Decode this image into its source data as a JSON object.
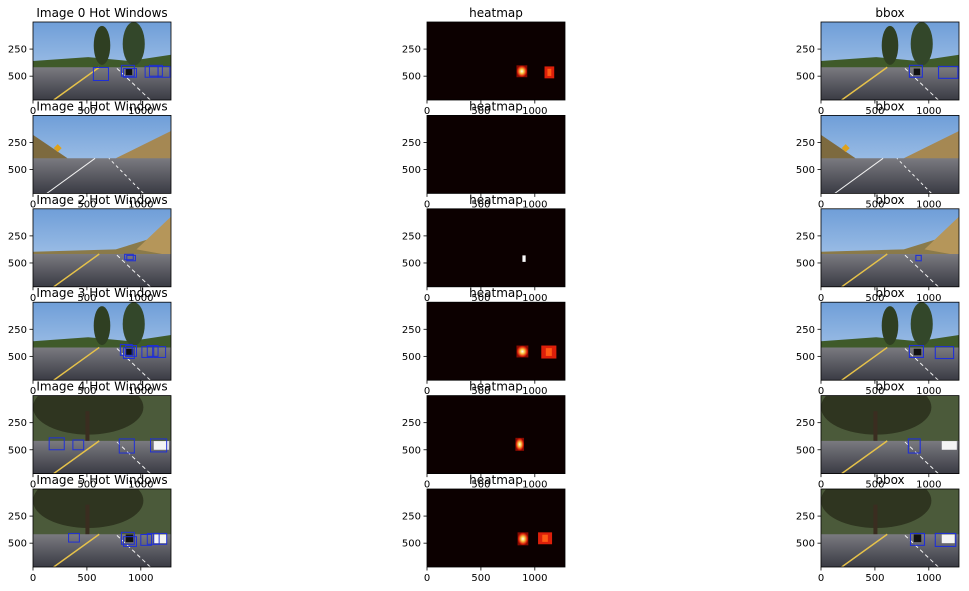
{
  "figure": {
    "background": "#ffffff",
    "rows": 6,
    "columns": 3
  },
  "chart_data": {
    "type": "image-grid",
    "xlim": [
      0,
      1280
    ],
    "ylim": [
      720,
      0
    ],
    "xticks": [
      "0",
      "500",
      "1000"
    ],
    "yticks": [
      "250",
      "500"
    ],
    "xtick_values": [
      0,
      500,
      1000
    ],
    "ytick_values": [
      250,
      500
    ],
    "colors": {
      "box": "#1f2fd6",
      "heat_background": "#0c0000",
      "heat_mid": "#e0200a",
      "heat_hot": "#ffd24a",
      "heat_max": "#ffffff"
    },
    "rows": [
      {
        "titles": [
          "Image 0 Hot Windows",
          "heatmap",
          "bbox"
        ],
        "scene": "shaded-highway",
        "hot_windows": [
          [
            560,
            420,
            700,
            540
          ],
          [
            820,
            400,
            940,
            500
          ],
          [
            840,
            430,
            960,
            510
          ],
          [
            1040,
            410,
            1160,
            510
          ],
          [
            1080,
            400,
            1200,
            500
          ],
          [
            1160,
            410,
            1270,
            510
          ]
        ],
        "heat_blobs": [
          {
            "x0": 830,
            "y0": 400,
            "x1": 930,
            "y1": 510,
            "level": 0.85
          },
          {
            "x0": 1090,
            "y0": 410,
            "x1": 1180,
            "y1": 520,
            "level": 0.5
          }
        ],
        "bboxes": [
          [
            820,
            400,
            940,
            510
          ],
          [
            1090,
            410,
            1270,
            520
          ]
        ],
        "car_patches": [
          [
            860,
            430,
            920,
            490
          ]
        ]
      },
      {
        "titles": [
          "Image 1 Hot Windows",
          "heatmap",
          "bbox"
        ],
        "scene": "desert-road",
        "hot_windows": [],
        "heat_blobs": [],
        "bboxes": [],
        "car_patches": []
      },
      {
        "titles": [
          "Image 2 Hot Windows",
          "heatmap",
          "bbox"
        ],
        "scene": "open-road",
        "hot_windows": [
          [
            850,
            420,
            930,
            470
          ],
          [
            870,
            430,
            950,
            480
          ]
        ],
        "heat_blobs": [
          {
            "x0": 885,
            "y0": 430,
            "x1": 915,
            "y1": 490,
            "level": 1.0
          }
        ],
        "bboxes": [
          [
            880,
            430,
            930,
            480
          ]
        ],
        "car_patches": []
      },
      {
        "titles": [
          "Image 3 Hot Windows",
          "heatmap",
          "bbox"
        ],
        "scene": "shaded-highway",
        "hot_windows": [
          [
            810,
            390,
            920,
            490
          ],
          [
            840,
            420,
            940,
            520
          ],
          [
            860,
            400,
            960,
            500
          ],
          [
            1010,
            410,
            1110,
            510
          ],
          [
            1060,
            400,
            1160,
            500
          ],
          [
            1120,
            410,
            1230,
            510
          ]
        ],
        "heat_blobs": [
          {
            "x0": 830,
            "y0": 400,
            "x1": 940,
            "y1": 510,
            "level": 0.85
          },
          {
            "x0": 1060,
            "y0": 400,
            "x1": 1200,
            "y1": 520,
            "level": 0.6
          }
        ],
        "bboxes": [
          [
            820,
            400,
            950,
            510
          ],
          [
            1060,
            410,
            1230,
            520
          ]
        ],
        "car_patches": [
          [
            860,
            430,
            930,
            490
          ]
        ]
      },
      {
        "titles": [
          "Image 4 Hot Windows",
          "heatmap",
          "bbox"
        ],
        "scene": "tree-shadow",
        "hot_windows": [
          [
            150,
            390,
            290,
            500
          ],
          [
            370,
            410,
            470,
            500
          ],
          [
            800,
            400,
            940,
            530
          ],
          [
            1090,
            400,
            1240,
            520
          ]
        ],
        "heat_blobs": [
          {
            "x0": 820,
            "y0": 390,
            "x1": 900,
            "y1": 510,
            "level": 0.9
          }
        ],
        "bboxes": [
          [
            810,
            400,
            920,
            530
          ]
        ],
        "car_patches": [
          [
            1120,
            420,
            1260,
            500
          ]
        ]
      },
      {
        "titles": [
          "Image 5 Hot Windows",
          "heatmap",
          "bbox"
        ],
        "scene": "tree-shadow",
        "hot_windows": [
          [
            330,
            410,
            430,
            490
          ],
          [
            820,
            400,
            940,
            510
          ],
          [
            840,
            440,
            960,
            530
          ],
          [
            1000,
            420,
            1100,
            520
          ],
          [
            1060,
            410,
            1170,
            510
          ],
          [
            1120,
            410,
            1240,
            510
          ]
        ],
        "heat_blobs": [
          {
            "x0": 840,
            "y0": 400,
            "x1": 940,
            "y1": 520,
            "level": 0.85
          },
          {
            "x0": 1030,
            "y0": 400,
            "x1": 1160,
            "y1": 510,
            "level": 0.6
          }
        ],
        "bboxes": [
          [
            830,
            410,
            960,
            520
          ],
          [
            1060,
            410,
            1250,
            530
          ]
        ],
        "car_patches": [
          [
            860,
            420,
            930,
            490
          ],
          [
            1120,
            420,
            1240,
            500
          ]
        ]
      }
    ]
  }
}
